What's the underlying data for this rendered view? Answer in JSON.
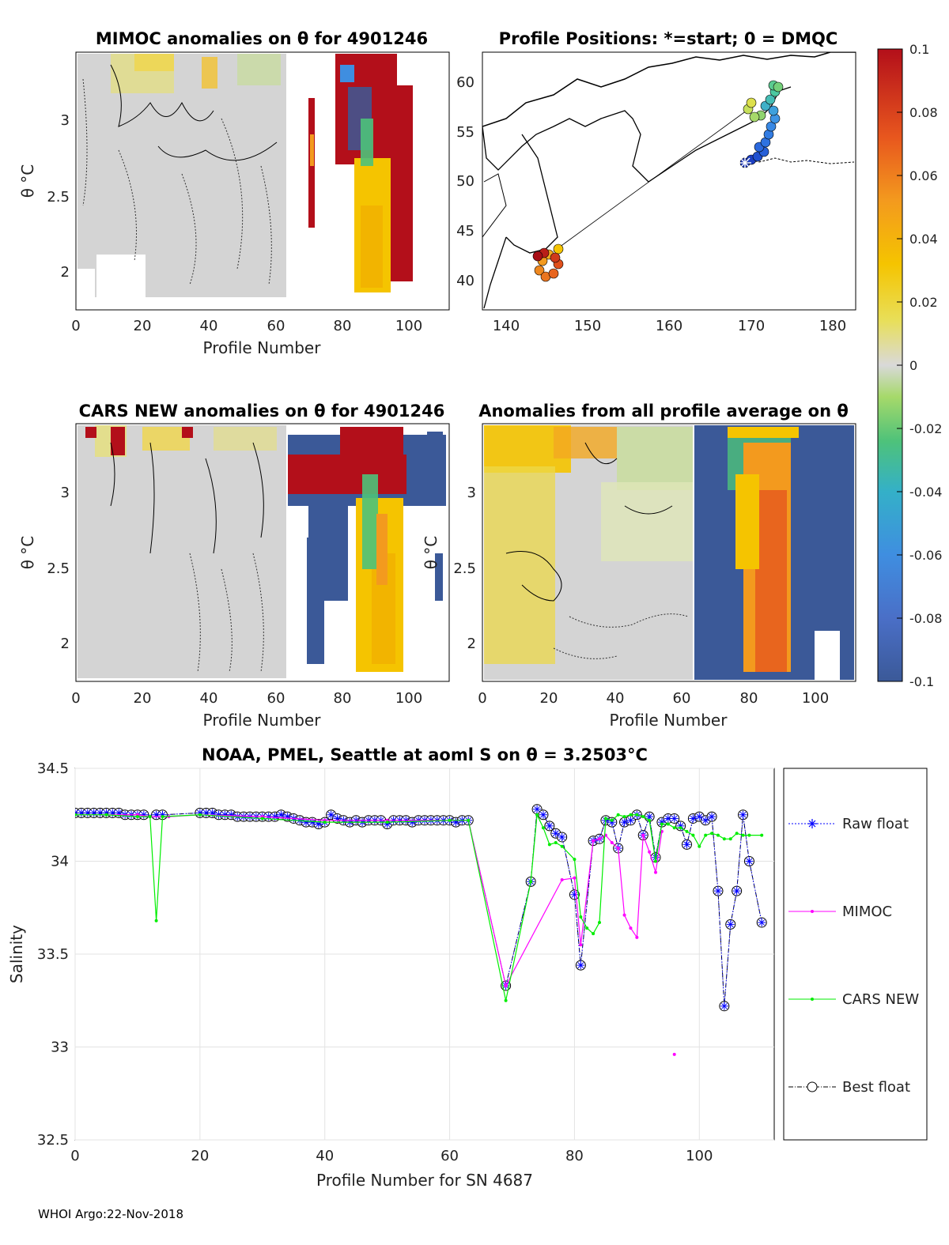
{
  "footer": "WHOI Argo:22-Nov-2018",
  "colorbar": {
    "ticks": [
      "0.1",
      "0.08",
      "0.06",
      "0.04",
      "0.02",
      "0",
      "-0.02",
      "-0.04",
      "-0.06",
      "-0.08",
      "-0.1"
    ],
    "range": [
      -0.1,
      0.1
    ],
    "colors": [
      "#3b5998",
      "#4a6fc7",
      "#3f8ee0",
      "#34b0c8",
      "#4ec27a",
      "#a6d96a",
      "#d9d9d9",
      "#e8df5a",
      "#f5c400",
      "#f39a1e",
      "#e8571e",
      "#b30f1a"
    ]
  },
  "panels": {
    "mimoc": {
      "title": "MIMOC anomalies on θ  for 4901246",
      "xlabel": "Profile Number",
      "ylabel": "θ °C",
      "xticks": [
        "0",
        "20",
        "40",
        "60",
        "80",
        "100"
      ],
      "yticks": [
        "3",
        "2.5",
        "2"
      ]
    },
    "positions": {
      "title": "Profile Positions: *=start; 0 = DMQC",
      "xticks": [
        "140",
        "150",
        "160",
        "170",
        "180"
      ],
      "yticks": [
        "60",
        "55",
        "50",
        "45",
        "40"
      ]
    },
    "cars": {
      "title": "CARS NEW anomalies on θ for 4901246",
      "xlabel": "Profile Number",
      "ylabel": "θ °C",
      "xticks": [
        "0",
        "20",
        "40",
        "60",
        "80",
        "100"
      ],
      "yticks": [
        "3",
        "2.5",
        "2"
      ]
    },
    "avg": {
      "title": "Anomalies from all profile average on θ",
      "xlabel": "Profile Number",
      "ylabel": "θ °C",
      "xticks": [
        "0",
        "20",
        "40",
        "60",
        "80",
        "100"
      ],
      "yticks": [
        "3",
        "2.5",
        "2"
      ]
    }
  },
  "chart_data": {
    "type": "line",
    "title": "NOAA, PMEL, Seattle at aoml S on θ = 3.2503°C",
    "xlabel": "Profile Number for SN 4687",
    "ylabel": "Salinity",
    "xlim": [
      0,
      112
    ],
    "ylim": [
      32.5,
      34.5
    ],
    "xticks": [
      0,
      20,
      40,
      60,
      80,
      100
    ],
    "yticks": [
      34.5,
      34,
      33.5,
      33,
      32.5
    ],
    "xtick_labels": [
      "0",
      "20",
      "40",
      "60",
      "80",
      "100"
    ],
    "ytick_labels": [
      "34.5",
      "34",
      "33.5",
      "33",
      "32.5"
    ],
    "legend": [
      "Raw float",
      "MIMOC",
      "CARS NEW",
      "Best float"
    ],
    "series": [
      {
        "name": "Best float",
        "color": "#000000",
        "x": [
          0,
          1,
          2,
          3,
          4,
          5,
          6,
          7,
          8,
          9,
          10,
          11,
          13,
          14,
          20,
          21,
          22,
          23,
          24,
          25,
          26,
          27,
          28,
          29,
          30,
          31,
          32,
          33,
          34,
          35,
          36,
          37,
          38,
          39,
          40,
          41,
          42,
          43,
          44,
          45,
          46,
          47,
          48,
          49,
          50,
          51,
          52,
          53,
          54,
          55,
          56,
          57,
          58,
          59,
          60,
          61,
          62,
          63,
          69,
          73,
          74,
          75,
          76,
          77,
          78,
          80,
          81,
          83,
          84,
          85,
          86,
          87,
          88,
          89,
          90,
          91,
          92,
          93,
          94,
          95,
          96,
          97,
          98,
          99,
          100,
          101,
          102,
          103,
          104,
          105,
          106,
          107,
          108,
          110
        ],
        "y": [
          34.26,
          34.26,
          34.26,
          34.26,
          34.26,
          34.26,
          34.26,
          34.26,
          34.25,
          34.25,
          34.25,
          34.25,
          34.25,
          34.25,
          34.26,
          34.26,
          34.26,
          34.25,
          34.25,
          34.25,
          34.24,
          34.24,
          34.24,
          34.24,
          34.24,
          34.24,
          34.24,
          34.25,
          34.24,
          34.23,
          34.22,
          34.21,
          34.21,
          34.2,
          34.21,
          34.25,
          34.23,
          34.22,
          34.21,
          34.22,
          34.21,
          34.22,
          34.22,
          34.22,
          34.2,
          34.22,
          34.22,
          34.22,
          34.21,
          34.22,
          34.22,
          34.22,
          34.22,
          34.22,
          34.22,
          34.21,
          34.22,
          34.22,
          33.33,
          33.89,
          34.28,
          34.25,
          34.19,
          34.15,
          34.13,
          33.82,
          33.44,
          34.11,
          34.12,
          34.22,
          34.21,
          34.07,
          34.21,
          34.22,
          34.25,
          34.14,
          34.24,
          34.02,
          34.21,
          34.23,
          34.23,
          34.19,
          34.09,
          34.23,
          34.24,
          34.22,
          34.24,
          33.84,
          33.22,
          33.66,
          33.84,
          34.25,
          34.0,
          33.67
        ]
      },
      {
        "name": "Raw float",
        "color": "#0000ff",
        "x": [
          0,
          1,
          2,
          3,
          4,
          5,
          6,
          7,
          8,
          9,
          10,
          11,
          13,
          14,
          20,
          21,
          22,
          23,
          24,
          25,
          26,
          27,
          28,
          29,
          30,
          31,
          32,
          33,
          34,
          35,
          36,
          37,
          38,
          39,
          40,
          41,
          42,
          43,
          44,
          45,
          46,
          47,
          48,
          49,
          50,
          51,
          52,
          53,
          54,
          55,
          56,
          57,
          58,
          59,
          60,
          61,
          62,
          63,
          69,
          73,
          74,
          75,
          76,
          77,
          78,
          80,
          81,
          83,
          84,
          85,
          86,
          87,
          88,
          89,
          90,
          91,
          92,
          93,
          94,
          95,
          96,
          97,
          98,
          99,
          100,
          101,
          102,
          103,
          104,
          105,
          106,
          107,
          108,
          110
        ],
        "y": [
          34.26,
          34.26,
          34.26,
          34.26,
          34.26,
          34.26,
          34.26,
          34.26,
          34.25,
          34.25,
          34.25,
          34.25,
          34.25,
          34.25,
          34.26,
          34.26,
          34.26,
          34.25,
          34.25,
          34.25,
          34.24,
          34.24,
          34.24,
          34.24,
          34.24,
          34.24,
          34.24,
          34.25,
          34.24,
          34.23,
          34.22,
          34.21,
          34.21,
          34.2,
          34.21,
          34.25,
          34.23,
          34.22,
          34.21,
          34.22,
          34.21,
          34.22,
          34.22,
          34.22,
          34.2,
          34.22,
          34.22,
          34.22,
          34.21,
          34.22,
          34.22,
          34.22,
          34.22,
          34.22,
          34.22,
          34.21,
          34.22,
          34.22,
          33.33,
          33.89,
          34.28,
          34.25,
          34.19,
          34.15,
          34.13,
          33.82,
          33.44,
          34.11,
          34.12,
          34.22,
          34.21,
          34.07,
          34.21,
          34.22,
          34.25,
          34.14,
          34.24,
          34.02,
          34.21,
          34.23,
          34.23,
          34.19,
          34.09,
          34.23,
          34.24,
          34.22,
          34.24,
          33.84,
          33.22,
          33.66,
          33.84,
          34.25,
          34.0,
          33.67
        ]
      },
      {
        "name": "MIMOC",
        "color": "#ff00ff",
        "x": [
          0,
          5,
          10,
          12,
          15,
          20,
          30,
          40,
          50,
          60,
          63,
          69,
          78,
          80,
          81,
          83,
          84,
          85,
          86,
          87,
          88,
          89,
          90,
          91,
          92,
          93,
          94
        ],
        "y": [
          34.25,
          34.25,
          34.25,
          34.24,
          34.24,
          34.25,
          34.24,
          34.22,
          34.22,
          34.22,
          34.22,
          33.33,
          33.9,
          33.91,
          33.55,
          34.11,
          34.12,
          34.14,
          34.1,
          34.07,
          33.71,
          33.64,
          33.59,
          34.14,
          34.05,
          33.94,
          34.16
        ]
      },
      {
        "name": "CARS NEW",
        "color": "#00ee00",
        "x": [
          0,
          5,
          10,
          12,
          13,
          14,
          20,
          30,
          40,
          50,
          60,
          63,
          69,
          73,
          74,
          75,
          76,
          77,
          78,
          80,
          81,
          82,
          83,
          84,
          85,
          86,
          87,
          88,
          89,
          90,
          91,
          92,
          93,
          94,
          95,
          96,
          97,
          98,
          99,
          100,
          101,
          102,
          103,
          104,
          105,
          106,
          107,
          108,
          110
        ],
        "y": [
          34.25,
          34.25,
          34.24,
          34.24,
          33.68,
          34.24,
          34.25,
          34.23,
          34.21,
          34.21,
          34.22,
          34.22,
          33.25,
          33.89,
          34.25,
          34.18,
          34.09,
          34.1,
          34.08,
          34.01,
          33.7,
          33.64,
          33.61,
          33.67,
          34.23,
          34.22,
          34.25,
          34.24,
          34.25,
          34.25,
          34.24,
          34.22,
          34.0,
          34.2,
          34.2,
          34.18,
          34.18,
          34.16,
          34.14,
          34.08,
          34.14,
          34.15,
          34.14,
          34.12,
          34.12,
          34.15,
          34.14,
          34.14,
          34.14
        ]
      },
      {
        "name": "MIMOC isolated",
        "color": "#ff00ff",
        "x": [
          96
        ],
        "y": [
          32.96
        ]
      }
    ]
  }
}
